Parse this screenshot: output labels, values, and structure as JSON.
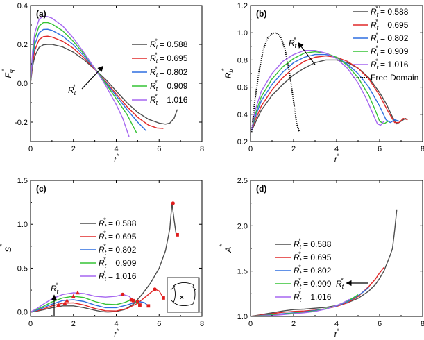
{
  "figure": {
    "legend_sub": "t",
    "legend_sup": "*",
    "legend_labels": [
      "0.588",
      "0.695",
      "0.802",
      "0.909",
      "1.016"
    ],
    "colors": [
      "#4d4d4d",
      "#e02828",
      "#2e6fe0",
      "#35c335",
      "#a566f0"
    ],
    "free_domain_color": "#000000",
    "marker_color": "#e01e1e"
  },
  "chart_data": [
    {
      "type": "line",
      "tag": "(a)",
      "xlabel": "t*",
      "ylabel": "Fq*",
      "xlim": [
        0,
        8
      ],
      "ylim": [
        -0.3,
        0.4
      ],
      "xticks": [
        0,
        2,
        4,
        6,
        8
      ],
      "yticks": [
        -0.2,
        0.0,
        0.2,
        0.4
      ],
      "ytick_labels": [
        "-0.2",
        "0.0",
        "0.2",
        "0.4"
      ],
      "legend_position": "right",
      "annotation": {
        "text_base": "R",
        "text_sub": "t",
        "text_sup": "*",
        "arrow": "towards larger Rt* (up-right)"
      },
      "series": [
        {
          "name": "Rt* = 0.588",
          "x": [
            0,
            0.1,
            0.2,
            0.4,
            0.6,
            0.8,
            1.0,
            1.5,
            2.0,
            2.5,
            3.0,
            3.5,
            4.0,
            4.5,
            5.0,
            5.5,
            6.0,
            6.3,
            6.5,
            6.7,
            6.85
          ],
          "y": [
            0,
            0.09,
            0.14,
            0.185,
            0.198,
            0.2,
            0.2,
            0.187,
            0.16,
            0.12,
            0.072,
            0.02,
            -0.04,
            -0.1,
            -0.15,
            -0.185,
            -0.205,
            -0.21,
            -0.205,
            -0.18,
            -0.135
          ]
        },
        {
          "name": "Rt* = 0.695",
          "x": [
            0,
            0.1,
            0.2,
            0.4,
            0.6,
            0.8,
            1.0,
            1.5,
            2.0,
            2.5,
            3.0,
            3.5,
            4.0,
            4.5,
            5.0,
            5.5,
            5.9,
            6.2
          ],
          "y": [
            0,
            0.11,
            0.17,
            0.225,
            0.24,
            0.242,
            0.238,
            0.216,
            0.18,
            0.13,
            0.072,
            0.01,
            -0.055,
            -0.12,
            -0.175,
            -0.215,
            -0.23,
            -0.232
          ]
        },
        {
          "name": "Rt* = 0.802",
          "x": [
            0,
            0.1,
            0.2,
            0.4,
            0.6,
            0.8,
            1.0,
            1.5,
            2.0,
            2.5,
            3.0,
            3.5,
            4.0,
            4.5,
            5.0,
            5.4
          ],
          "y": [
            0,
            0.13,
            0.2,
            0.26,
            0.277,
            0.278,
            0.272,
            0.243,
            0.198,
            0.14,
            0.075,
            0.005,
            -0.065,
            -0.135,
            -0.2,
            -0.245
          ]
        },
        {
          "name": "Rt* = 0.909",
          "x": [
            0,
            0.1,
            0.2,
            0.4,
            0.6,
            0.8,
            1.0,
            1.5,
            2.0,
            2.5,
            3.0,
            3.5,
            4.0,
            4.5,
            4.95
          ],
          "y": [
            0,
            0.15,
            0.23,
            0.295,
            0.312,
            0.312,
            0.305,
            0.27,
            0.215,
            0.15,
            0.078,
            0.0,
            -0.08,
            -0.16,
            -0.255
          ]
        },
        {
          "name": "Rt* = 1.016",
          "x": [
            0,
            0.1,
            0.2,
            0.4,
            0.6,
            0.8,
            1.0,
            1.5,
            2.0,
            2.5,
            3.0,
            3.5,
            4.0,
            4.3,
            4.6
          ],
          "y": [
            0,
            0.17,
            0.26,
            0.33,
            0.345,
            0.343,
            0.335,
            0.295,
            0.232,
            0.157,
            0.076,
            -0.01,
            -0.11,
            -0.18,
            -0.275
          ]
        }
      ]
    },
    {
      "type": "line",
      "tag": "(b)",
      "xlabel": "t*",
      "ylabel": "Rb*",
      "xlim": [
        0,
        8
      ],
      "ylim": [
        0.2,
        1.2
      ],
      "xticks": [
        0,
        2,
        4,
        6,
        8
      ],
      "yticks": [
        0.2,
        0.4,
        0.6,
        0.8,
        1.0,
        1.2
      ],
      "ytick_labels": [
        "0.2",
        "0.4",
        "0.6",
        "0.8",
        "1.0",
        "1.2"
      ],
      "legend_position": "top-right",
      "free_domain_label": "Free Domain",
      "annotation": {
        "text_base": "R",
        "text_sub": "t",
        "text_sup": "*",
        "arrow": "towards larger Rt* (up-left)"
      },
      "series": [
        {
          "name": "Rt* = 0.588",
          "x": [
            0.05,
            0.2,
            0.5,
            1.0,
            1.5,
            2.0,
            2.5,
            3.0,
            3.5,
            4.0,
            4.5,
            5.0,
            5.5,
            6.0,
            6.3,
            6.6,
            6.8,
            7.0,
            7.2,
            7.3
          ],
          "y": [
            0.28,
            0.33,
            0.43,
            0.54,
            0.62,
            0.69,
            0.74,
            0.78,
            0.8,
            0.8,
            0.78,
            0.74,
            0.67,
            0.56,
            0.48,
            0.38,
            0.33,
            0.35,
            0.37,
            0.36
          ]
        },
        {
          "name": "Rt* = 0.695",
          "x": [
            0.05,
            0.2,
            0.5,
            1.0,
            1.5,
            2.0,
            2.5,
            3.0,
            3.5,
            4.0,
            4.5,
            5.0,
            5.5,
            6.0,
            6.4,
            6.7,
            6.9,
            7.1,
            7.3
          ],
          "y": [
            0.28,
            0.35,
            0.46,
            0.58,
            0.67,
            0.74,
            0.79,
            0.82,
            0.83,
            0.82,
            0.79,
            0.74,
            0.66,
            0.54,
            0.42,
            0.34,
            0.34,
            0.37,
            0.36
          ]
        },
        {
          "name": "Rt* = 0.802",
          "x": [
            0.05,
            0.2,
            0.5,
            1.0,
            1.5,
            2.0,
            2.5,
            3.0,
            3.5,
            4.0,
            4.5,
            5.0,
            5.5,
            6.0,
            6.3,
            6.5,
            6.7,
            6.9
          ],
          "y": [
            0.28,
            0.37,
            0.5,
            0.62,
            0.71,
            0.78,
            0.82,
            0.84,
            0.84,
            0.82,
            0.77,
            0.7,
            0.6,
            0.46,
            0.36,
            0.34,
            0.36,
            0.35
          ]
        },
        {
          "name": "Rt* = 0.909",
          "x": [
            0.05,
            0.2,
            0.5,
            1.0,
            1.5,
            2.0,
            2.5,
            3.0,
            3.5,
            4.0,
            4.5,
            5.0,
            5.5,
            5.8,
            6.0,
            6.2,
            6.4
          ],
          "y": [
            0.28,
            0.39,
            0.53,
            0.66,
            0.75,
            0.81,
            0.85,
            0.86,
            0.85,
            0.82,
            0.76,
            0.67,
            0.54,
            0.43,
            0.35,
            0.33,
            0.35
          ]
        },
        {
          "name": "Rt* = 1.016",
          "x": [
            0.05,
            0.2,
            0.5,
            1.0,
            1.5,
            2.0,
            2.5,
            3.0,
            3.5,
            4.0,
            4.5,
            5.0,
            5.4,
            5.7,
            5.9,
            6.05,
            6.2
          ],
          "y": [
            0.28,
            0.42,
            0.57,
            0.7,
            0.79,
            0.84,
            0.87,
            0.87,
            0.85,
            0.81,
            0.74,
            0.63,
            0.51,
            0.4,
            0.33,
            0.32,
            0.35
          ]
        },
        {
          "name": "Free Domain",
          "style": "dotted",
          "x": [
            0.05,
            0.2,
            0.4,
            0.6,
            0.8,
            1.0,
            1.2,
            1.4,
            1.6,
            1.8,
            2.0,
            2.15,
            2.25,
            2.3
          ],
          "y": [
            0.27,
            0.5,
            0.72,
            0.88,
            0.96,
            0.995,
            1.0,
            0.97,
            0.88,
            0.72,
            0.5,
            0.33,
            0.28,
            0.27
          ]
        }
      ]
    },
    {
      "type": "line",
      "tag": "(c)",
      "xlabel": "t*",
      "ylabel": "S*",
      "xlim": [
        0,
        8
      ],
      "ylim": [
        -0.05,
        1.5
      ],
      "xticks": [
        0,
        2,
        4,
        6,
        8
      ],
      "yticks": [
        0.0,
        0.5,
        1.0,
        1.5
      ],
      "ytick_labels": [
        "0.0",
        "0.5",
        "1.0",
        "1.5"
      ],
      "legend_position": "center",
      "annotation": {
        "text_base": "R",
        "text_sub": "t",
        "text_sup": "*",
        "arrow": "towards larger Rt* (up)"
      },
      "series": [
        {
          "name": "Rt* = 0.588",
          "x": [
            0,
            0.3,
            0.6,
            1.0,
            1.5,
            2.0,
            2.5,
            3.0,
            3.3,
            3.6,
            4.0,
            4.4,
            4.8,
            5.2,
            5.6,
            6.0,
            6.3,
            6.5,
            6.6,
            6.7,
            6.8
          ],
          "y": [
            0,
            0.01,
            0.025,
            0.05,
            0.07,
            0.07,
            0.05,
            0.02,
            0.005,
            0.0,
            0.005,
            0.03,
            0.09,
            0.2,
            0.33,
            0.5,
            0.7,
            0.95,
            1.24,
            1.05,
            0.88
          ]
        },
        {
          "name": "Rt* = 0.695",
          "x": [
            0,
            0.3,
            0.6,
            1.0,
            1.5,
            2.0,
            2.5,
            3.0,
            3.5,
            4.0,
            4.5,
            5.0,
            5.5,
            5.8,
            6.0,
            6.2
          ],
          "y": [
            0,
            0.015,
            0.035,
            0.07,
            0.1,
            0.105,
            0.08,
            0.04,
            0.015,
            0.012,
            0.04,
            0.1,
            0.2,
            0.26,
            0.24,
            0.16
          ]
        },
        {
          "name": "Rt* = 0.802",
          "x": [
            0,
            0.3,
            0.6,
            1.0,
            1.5,
            2.0,
            2.5,
            3.0,
            3.5,
            4.0,
            4.5,
            5.0,
            5.3,
            5.5
          ],
          "y": [
            0,
            0.02,
            0.05,
            0.09,
            0.13,
            0.14,
            0.12,
            0.08,
            0.05,
            0.05,
            0.08,
            0.12,
            0.11,
            0.07
          ]
        },
        {
          "name": "Rt* = 0.909",
          "x": [
            0,
            0.3,
            0.6,
            1.0,
            1.5,
            2.0,
            2.5,
            3.0,
            3.5,
            4.0,
            4.4,
            4.7,
            4.9,
            5.1
          ],
          "y": [
            0,
            0.03,
            0.065,
            0.115,
            0.16,
            0.18,
            0.165,
            0.12,
            0.09,
            0.085,
            0.11,
            0.14,
            0.12,
            0.08
          ]
        },
        {
          "name": "Rt* = 1.016",
          "x": [
            0,
            0.3,
            0.6,
            1.0,
            1.5,
            2.0,
            2.5,
            3.0,
            3.5,
            4.0,
            4.3,
            4.6,
            4.8
          ],
          "y": [
            0,
            0.04,
            0.09,
            0.15,
            0.2,
            0.22,
            0.21,
            0.18,
            0.17,
            0.18,
            0.2,
            0.18,
            0.13
          ]
        }
      ],
      "markers": [
        {
          "x": 6.65,
          "y": 1.24,
          "shape": "circle"
        },
        {
          "x": 6.85,
          "y": 0.88,
          "shape": "square"
        },
        {
          "x": 5.8,
          "y": 0.26,
          "shape": "circle"
        },
        {
          "x": 6.2,
          "y": 0.16,
          "shape": "square"
        },
        {
          "x": 5.0,
          "y": 0.12,
          "shape": "circle"
        },
        {
          "x": 5.5,
          "y": 0.07,
          "shape": "square"
        },
        {
          "x": 4.7,
          "y": 0.14,
          "shape": "circle"
        },
        {
          "x": 5.1,
          "y": 0.08,
          "shape": "square"
        },
        {
          "x": 4.3,
          "y": 0.2,
          "shape": "circle"
        },
        {
          "x": 4.8,
          "y": 0.13,
          "shape": "square"
        },
        {
          "x": 1.3,
          "y": 0.08,
          "shape": "triangle"
        },
        {
          "x": 1.6,
          "y": 0.1,
          "shape": "triangle"
        },
        {
          "x": 1.7,
          "y": 0.13,
          "shape": "triangle"
        },
        {
          "x": 2.0,
          "y": 0.18,
          "shape": "triangle"
        },
        {
          "x": 2.2,
          "y": 0.22,
          "shape": "triangle"
        }
      ]
    },
    {
      "type": "line",
      "tag": "(d)",
      "xlabel": "t*",
      "ylabel": "A*",
      "xlim": [
        0,
        8
      ],
      "ylim": [
        1.0,
        2.5
      ],
      "xticks": [
        0,
        2,
        4,
        6,
        8
      ],
      "yticks": [
        1.0,
        1.5,
        2.0,
        2.5
      ],
      "ytick_labels": [
        "1.0",
        "1.5",
        "2.0",
        "2.5"
      ],
      "legend_position": "center-left",
      "annotation": {
        "text_base": "R",
        "text_sub": "t",
        "text_sup": "*",
        "arrow": "towards larger Rt* (left)"
      },
      "series": [
        {
          "name": "Rt* = 0.588",
          "x": [
            0,
            0.5,
            1.0,
            1.5,
            2.0,
            2.5,
            3.0,
            3.5,
            4.0,
            4.5,
            5.0,
            5.5,
            5.8,
            6.0,
            6.2,
            6.4,
            6.5,
            6.6,
            6.7,
            6.8
          ],
          "y": [
            1.0,
            1.02,
            1.04,
            1.06,
            1.075,
            1.08,
            1.09,
            1.1,
            1.12,
            1.15,
            1.2,
            1.28,
            1.35,
            1.42,
            1.5,
            1.62,
            1.68,
            1.75,
            1.95,
            2.18
          ]
        },
        {
          "name": "Rt* = 0.695",
          "x": [
            0,
            0.5,
            1.0,
            1.5,
            2.0,
            2.5,
            3.0,
            3.5,
            4.0,
            4.5,
            5.0,
            5.5,
            5.8,
            6.0,
            6.2
          ],
          "y": [
            1.0,
            1.015,
            1.03,
            1.045,
            1.055,
            1.06,
            1.07,
            1.085,
            1.11,
            1.15,
            1.22,
            1.33,
            1.41,
            1.48,
            1.54
          ]
        },
        {
          "name": "Rt* = 0.802",
          "x": [
            0,
            0.5,
            1.0,
            1.5,
            2.0,
            2.5,
            3.0,
            3.5,
            4.0,
            4.5,
            5.0,
            5.3,
            5.5
          ],
          "y": [
            1.0,
            1.01,
            1.02,
            1.03,
            1.04,
            1.05,
            1.065,
            1.085,
            1.115,
            1.16,
            1.23,
            1.28,
            1.32
          ]
        },
        {
          "name": "Rt* = 0.909",
          "x": [
            0,
            0.5,
            1.0,
            1.5,
            2.0,
            2.5,
            3.0,
            3.5,
            4.0,
            4.5,
            4.8,
            5.0
          ],
          "y": [
            1.0,
            1.008,
            1.015,
            1.025,
            1.035,
            1.045,
            1.06,
            1.085,
            1.12,
            1.17,
            1.21,
            1.24
          ]
        },
        {
          "name": "Rt* = 1.016",
          "x": [
            0,
            0.5,
            1.0,
            1.5,
            2.0,
            2.5,
            3.0,
            3.5,
            4.0,
            4.3,
            4.6
          ],
          "y": [
            1.0,
            1.005,
            1.01,
            1.02,
            1.03,
            1.04,
            1.055,
            1.08,
            1.12,
            1.15,
            1.19
          ]
        }
      ]
    }
  ]
}
